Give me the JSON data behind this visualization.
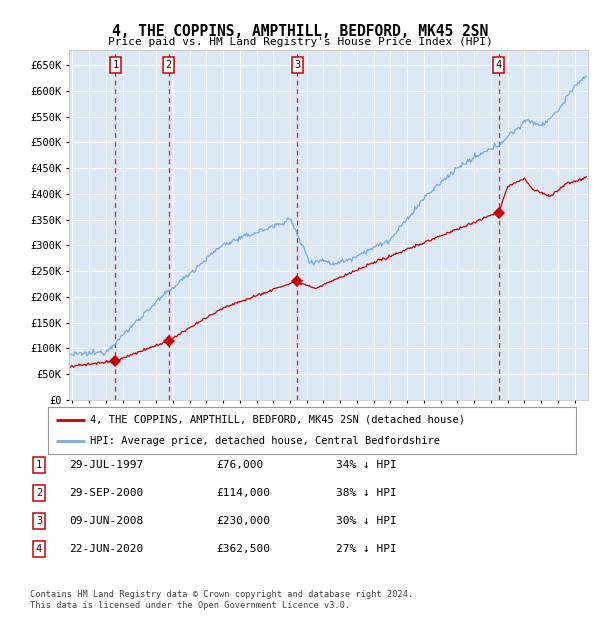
{
  "title": "4, THE COPPINS, AMPTHILL, BEDFORD, MK45 2SN",
  "subtitle": "Price paid vs. HM Land Registry's House Price Index (HPI)",
  "background_color": "#ffffff",
  "plot_bg_color": "#dde8f5",
  "ylim": [
    0,
    680000
  ],
  "yticks": [
    0,
    50000,
    100000,
    150000,
    200000,
    250000,
    300000,
    350000,
    400000,
    450000,
    500000,
    550000,
    600000,
    650000
  ],
  "ytick_labels": [
    "£0",
    "£50K",
    "£100K",
    "£150K",
    "£200K",
    "£250K",
    "£300K",
    "£350K",
    "£400K",
    "£450K",
    "£500K",
    "£550K",
    "£600K",
    "£650K"
  ],
  "xlim_start": 1994.8,
  "xlim_end": 2025.8,
  "sale_dates": [
    1997.57,
    2000.75,
    2008.44,
    2020.47
  ],
  "sale_prices": [
    76000,
    114000,
    230000,
    362500
  ],
  "sale_labels": [
    "1",
    "2",
    "3",
    "4"
  ],
  "red_line_color": "#cc0000",
  "blue_line_color": "#7aaadd",
  "sale_dot_color": "#cc0000",
  "legend_label_red": "4, THE COPPINS, AMPTHILL, BEDFORD, MK45 2SN (detached house)",
  "legend_label_blue": "HPI: Average price, detached house, Central Bedfordshire",
  "table_entries": [
    {
      "num": "1",
      "date": "29-JUL-1997",
      "price": "£76,000",
      "pct": "34% ↓ HPI"
    },
    {
      "num": "2",
      "date": "29-SEP-2000",
      "price": "£114,000",
      "pct": "38% ↓ HPI"
    },
    {
      "num": "3",
      "date": "09-JUN-2008",
      "price": "£230,000",
      "pct": "30% ↓ HPI"
    },
    {
      "num": "4",
      "date": "22-JUN-2020",
      "price": "£362,500",
      "pct": "27% ↓ HPI"
    }
  ],
  "footnote": "Contains HM Land Registry data © Crown copyright and database right 2024.\nThis data is licensed under the Open Government Licence v3.0."
}
